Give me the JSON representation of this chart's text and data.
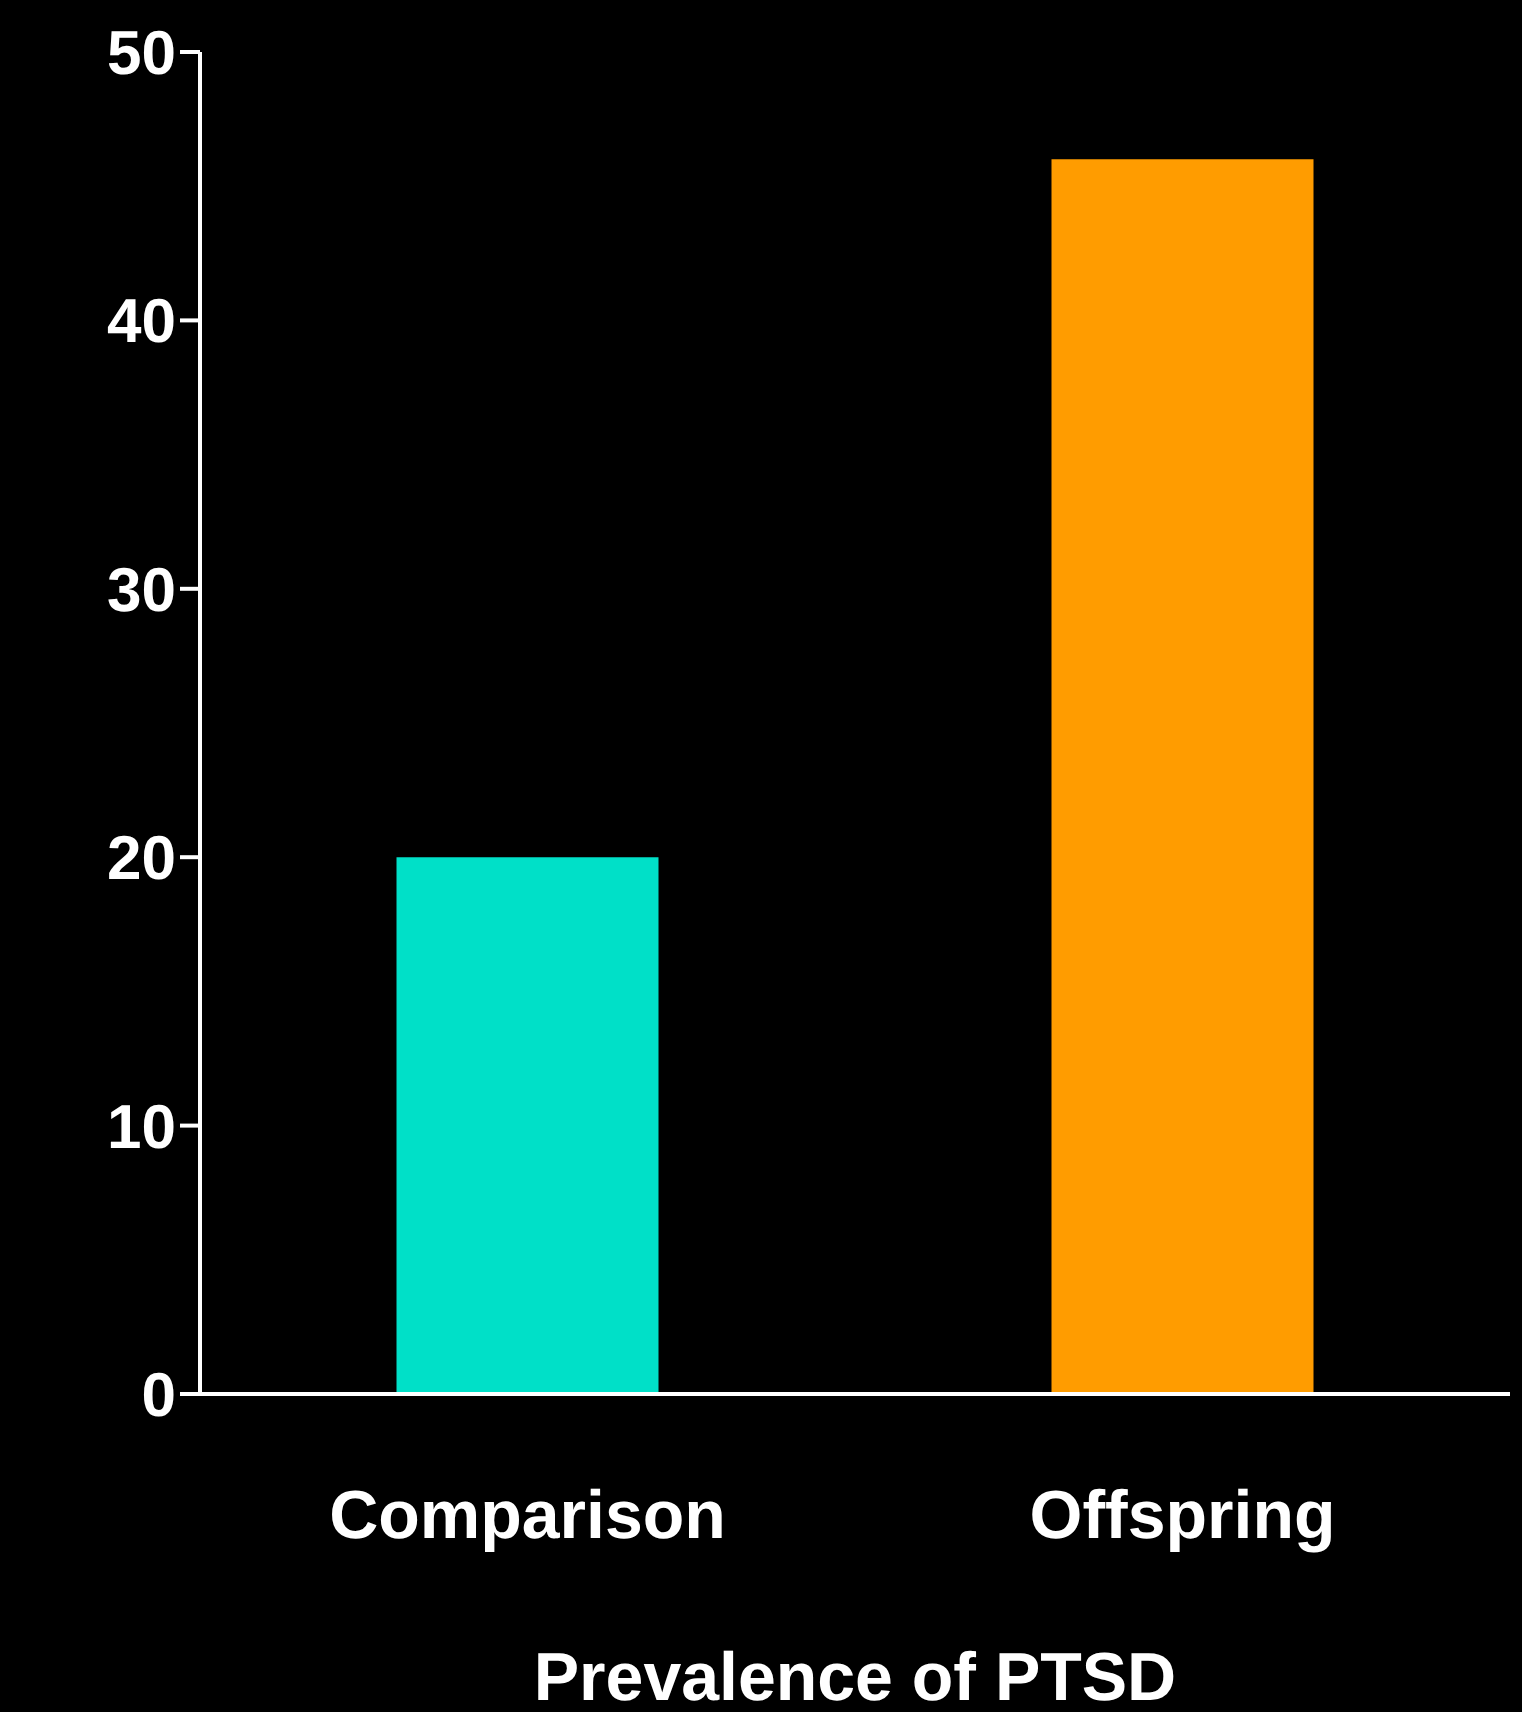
{
  "chart_data": {
    "type": "bar",
    "xlabel": "Prevalence of PTSD",
    "categories": [
      "Comparison",
      "Offspring"
    ],
    "values": [
      20,
      46
    ],
    "colors": [
      "#00e0c8",
      "#ff9c00"
    ],
    "ylim": [
      0,
      50
    ],
    "yticks": [
      0,
      10,
      20,
      30,
      40,
      50
    ]
  }
}
